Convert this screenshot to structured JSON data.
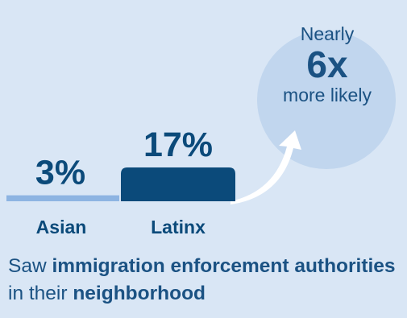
{
  "chart_data": {
    "type": "bar",
    "categories": [
      "Asian",
      "Latinx"
    ],
    "values": [
      3,
      17
    ],
    "value_labels": [
      "3%",
      "17%"
    ],
    "ylim": [
      0,
      17
    ],
    "colors": {
      "Asian": "#8db4e2",
      "Latinx": "#0b4a7a"
    }
  },
  "callout": {
    "top": "Nearly",
    "multiplier": "6x",
    "bottom": "more likely"
  },
  "caption": {
    "p1": "Saw ",
    "b1": "immigration enforcement authorities",
    "p2": " in their ",
    "b2": "neighborhood"
  },
  "colors": {
    "background": "#d9e6f5",
    "text": "#1b5283",
    "bubble": "#c1d6ee",
    "ink": "#0b4a7a"
  }
}
